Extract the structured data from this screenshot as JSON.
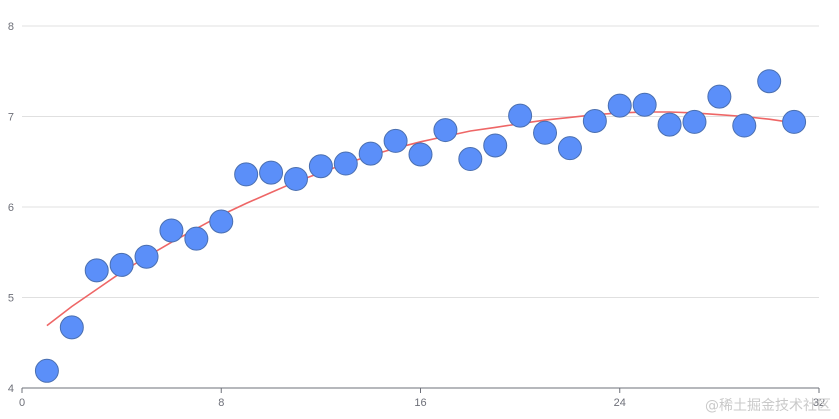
{
  "chart_data": {
    "type": "scatter",
    "title": "",
    "xlabel": "",
    "ylabel": "",
    "xlim": [
      0,
      32
    ],
    "ylim": [
      4,
      8
    ],
    "x_ticks": [
      "0",
      "8",
      "16",
      "24",
      "32"
    ],
    "y_ticks": [
      "4",
      "5",
      "6",
      "7",
      "8"
    ],
    "grid": "horizontal",
    "colors": {
      "points": "#5b8ff9",
      "point_stroke": "#4a6fb0",
      "trend": "#ee6666",
      "grid": "#e0e0e0",
      "axis": "#6e7079"
    },
    "series": [
      {
        "type": "scatter",
        "x": [
          1,
          2,
          3,
          4,
          5,
          6,
          7,
          8,
          9,
          10,
          11,
          12,
          13,
          14,
          15,
          16,
          17,
          18,
          19,
          20,
          21,
          22,
          23,
          24,
          25,
          26,
          27,
          28,
          29,
          30,
          31
        ],
        "y": [
          4.19,
          4.67,
          5.3,
          5.36,
          5.45,
          5.74,
          5.65,
          5.84,
          6.36,
          6.38,
          6.31,
          6.45,
          6.48,
          6.59,
          6.73,
          6.58,
          6.85,
          6.53,
          6.68,
          7.01,
          6.82,
          6.65,
          6.95,
          7.12,
          7.13,
          6.91,
          6.94,
          7.22,
          6.9,
          7.39,
          6.94
        ]
      },
      {
        "type": "line",
        "x": [
          1,
          2,
          3,
          4,
          5,
          6,
          7,
          8,
          9,
          10,
          11,
          12,
          13,
          14,
          15,
          16,
          17,
          18,
          19,
          20,
          21,
          22,
          23,
          24,
          25,
          26,
          27,
          28,
          29,
          30,
          31
        ],
        "y": [
          4.69,
          4.9,
          5.09,
          5.28,
          5.45,
          5.61,
          5.76,
          5.91,
          6.04,
          6.16,
          6.28,
          6.38,
          6.48,
          6.57,
          6.65,
          6.72,
          6.78,
          6.84,
          6.88,
          6.92,
          6.96,
          6.99,
          7.02,
          7.04,
          7.05,
          7.05,
          7.04,
          7.02,
          7.0,
          6.97,
          6.93
        ]
      }
    ]
  },
  "watermark": "@稀土掘金技术社区"
}
